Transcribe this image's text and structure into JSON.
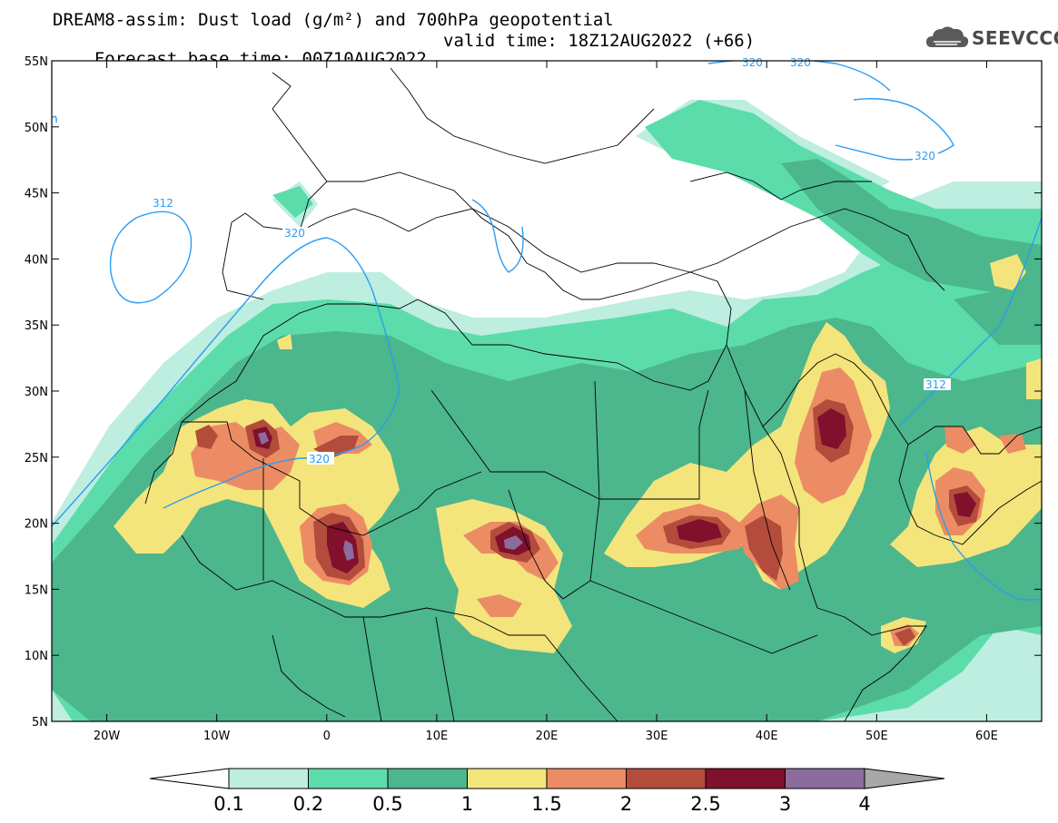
{
  "header": {
    "title_line1": "DREAM8-assim: Dust load (g/m²) and 700hPa geopotential",
    "base_time_label": "Forecast base time: 00Z10AUG2022",
    "valid_time_label": "valid time: 18Z12AUG2022 (+66)"
  },
  "logo": {
    "text": "SEEVCCC",
    "icon": "cloud-logo-icon"
  },
  "map": {
    "lon_range": [
      -25,
      65
    ],
    "lat_range": [
      5,
      55
    ],
    "lat_ticks": [
      "55N",
      "50N",
      "45N",
      "40N",
      "35N",
      "30N",
      "25N",
      "20N",
      "15N",
      "10N",
      "5N"
    ],
    "lon_ticks": [
      "20W",
      "10W",
      "0",
      "10E",
      "20E",
      "30E",
      "40E",
      "50E",
      "60E"
    ],
    "contour_labels": [
      "312",
      "320",
      "320",
      "320",
      "320",
      "312",
      "320"
    ]
  },
  "colorbar": {
    "labels": [
      "0.1",
      "0.2",
      "0.5",
      "1",
      "1.5",
      "2",
      "2.5",
      "3",
      "4"
    ],
    "colors": {
      "c01": "#bdeee0",
      "c02": "#5cdcaa",
      "c05": "#4cb68c",
      "c1": "#f4e47c",
      "c15": "#ec8c64",
      "c2": "#b44c3c",
      "c25": "#80102c",
      "c3": "#8c6c9c",
      "c4": "#a8a8a8"
    },
    "contour_color": "#2a9df4"
  }
}
